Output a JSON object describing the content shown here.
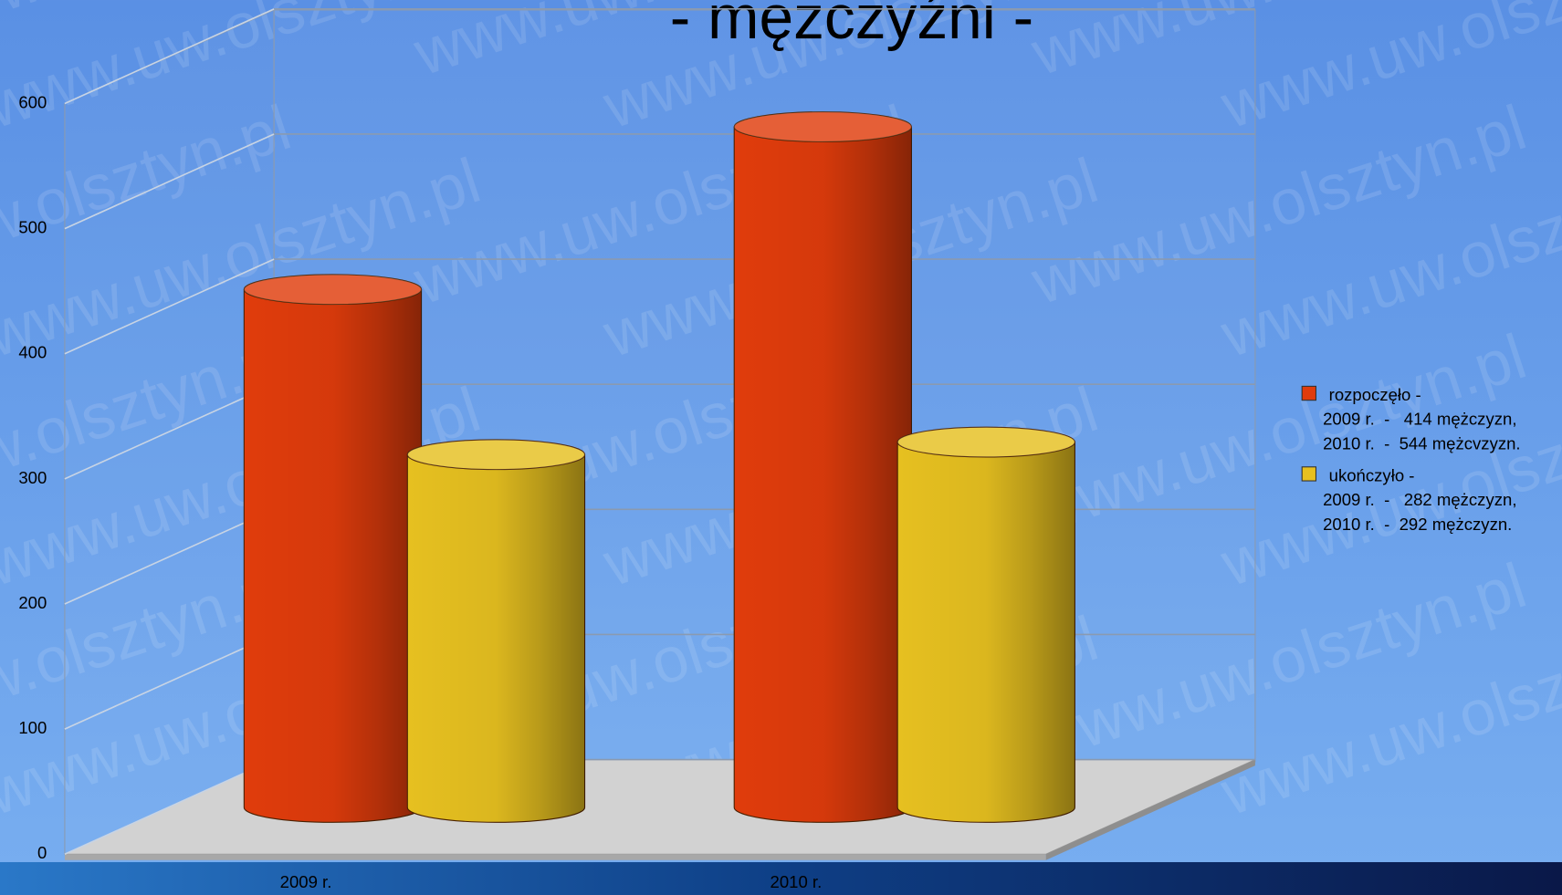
{
  "chart_data": {
    "type": "bar3d",
    "title": "- mężczyźni -",
    "watermark": "www.uw.olsztyn.pl",
    "categories": [
      "2009 r.",
      "2010 r."
    ],
    "series": [
      {
        "name": "rozpoczęło -",
        "color": "#e03c0c",
        "values": [
          414,
          544
        ],
        "legend_lines": [
          "2009 r.  -   414 mężczyzn,",
          "2010 r.  -  544 mężcvzyzn."
        ]
      },
      {
        "name": "ukończyło -",
        "color": "#e6c020",
        "values": [
          282,
          292
        ],
        "legend_lines": [
          "2009 r.  -   282 mężczyzn,",
          "2010 r.  -  292 mężczyzn."
        ]
      }
    ],
    "ylim": [
      0,
      600
    ],
    "yticks": [
      0,
      100,
      200,
      300,
      400,
      500,
      600
    ],
    "grid": true
  }
}
